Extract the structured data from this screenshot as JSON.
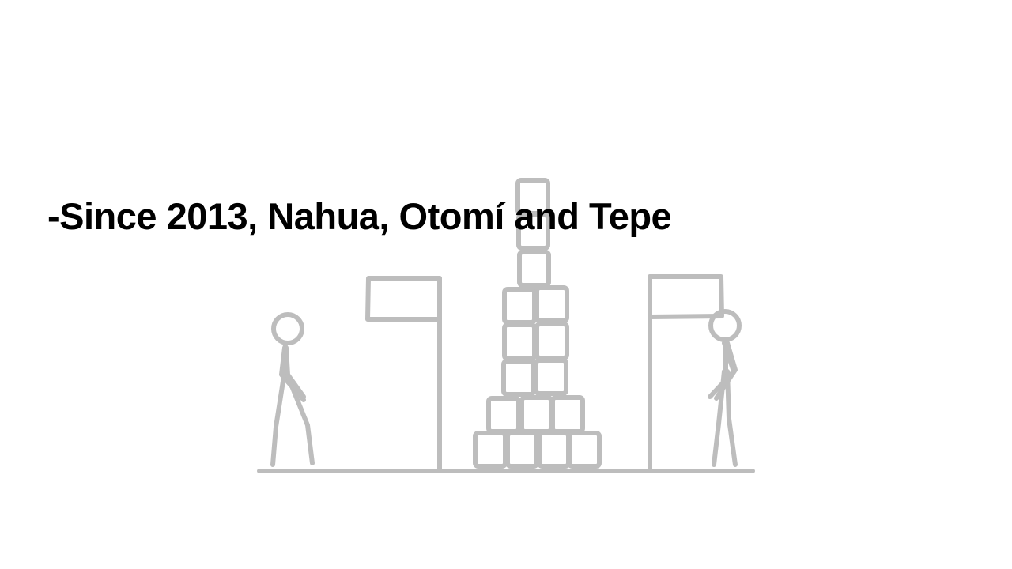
{
  "slide": {
    "caption": "-Since 2013, Nahua, Otomí and Tepe"
  },
  "illustration": {
    "stroke_color": "#bdbdbd",
    "text_color": "#000000",
    "background": "#ffffff"
  }
}
